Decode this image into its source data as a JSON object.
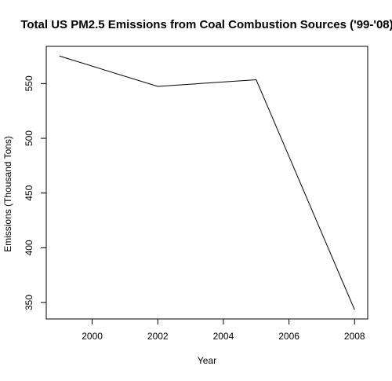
{
  "chart_data": {
    "type": "line",
    "title": "Total US PM2.5 Emissions from Coal Combustion Sources ('99-'08)",
    "xlabel": "Year",
    "ylabel": "Emissions (Thousand Tons)",
    "x": [
      1999,
      2002,
      2005,
      2008
    ],
    "series": [
      {
        "values": [
          575.2,
          547.4,
          553.5,
          343.4
        ]
      }
    ],
    "xlim": [
      1998.6,
      2008.4
    ],
    "ylim": [
      335,
      584
    ],
    "xticks": [
      2000,
      2002,
      2004,
      2006,
      2008
    ],
    "yticks": [
      350,
      400,
      450,
      500,
      550
    ],
    "grid": false,
    "legend": "none",
    "colors": {
      "line": "#000000",
      "axis": "#000000",
      "background": "#ffffff"
    }
  }
}
